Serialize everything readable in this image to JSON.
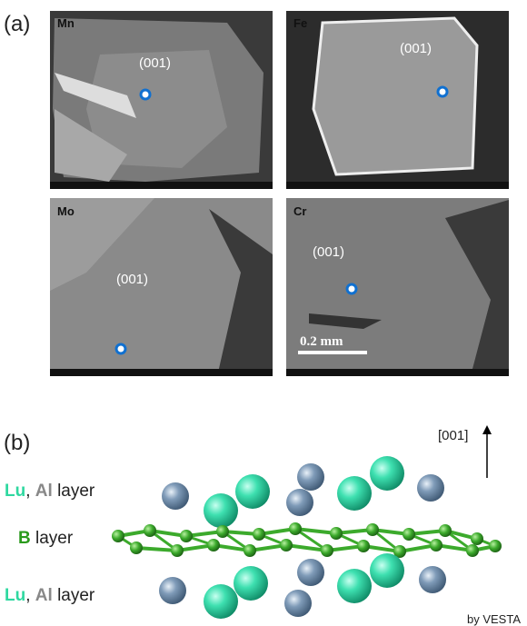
{
  "panel_a": {
    "label": "(a)",
    "images": [
      {
        "element": "Mn",
        "plane": "(001)"
      },
      {
        "element": "Fe",
        "plane": "(001)"
      },
      {
        "element": "Mo",
        "plane": "(001)"
      },
      {
        "element": "Cr",
        "plane": "(001)"
      }
    ],
    "scale_bar": "0.2 mm"
  },
  "panel_b": {
    "label": "(b)",
    "direction": "[001]",
    "top_layer": {
      "lu": "Lu",
      "comma": ",",
      "al": "Al",
      "word": "layer"
    },
    "middle_layer": {
      "b": "B",
      "word": "layer"
    },
    "bottom_layer": {
      "lu": "Lu",
      "comma": ",",
      "al": "Al",
      "word": "layer"
    },
    "credit": "by VESTA"
  }
}
